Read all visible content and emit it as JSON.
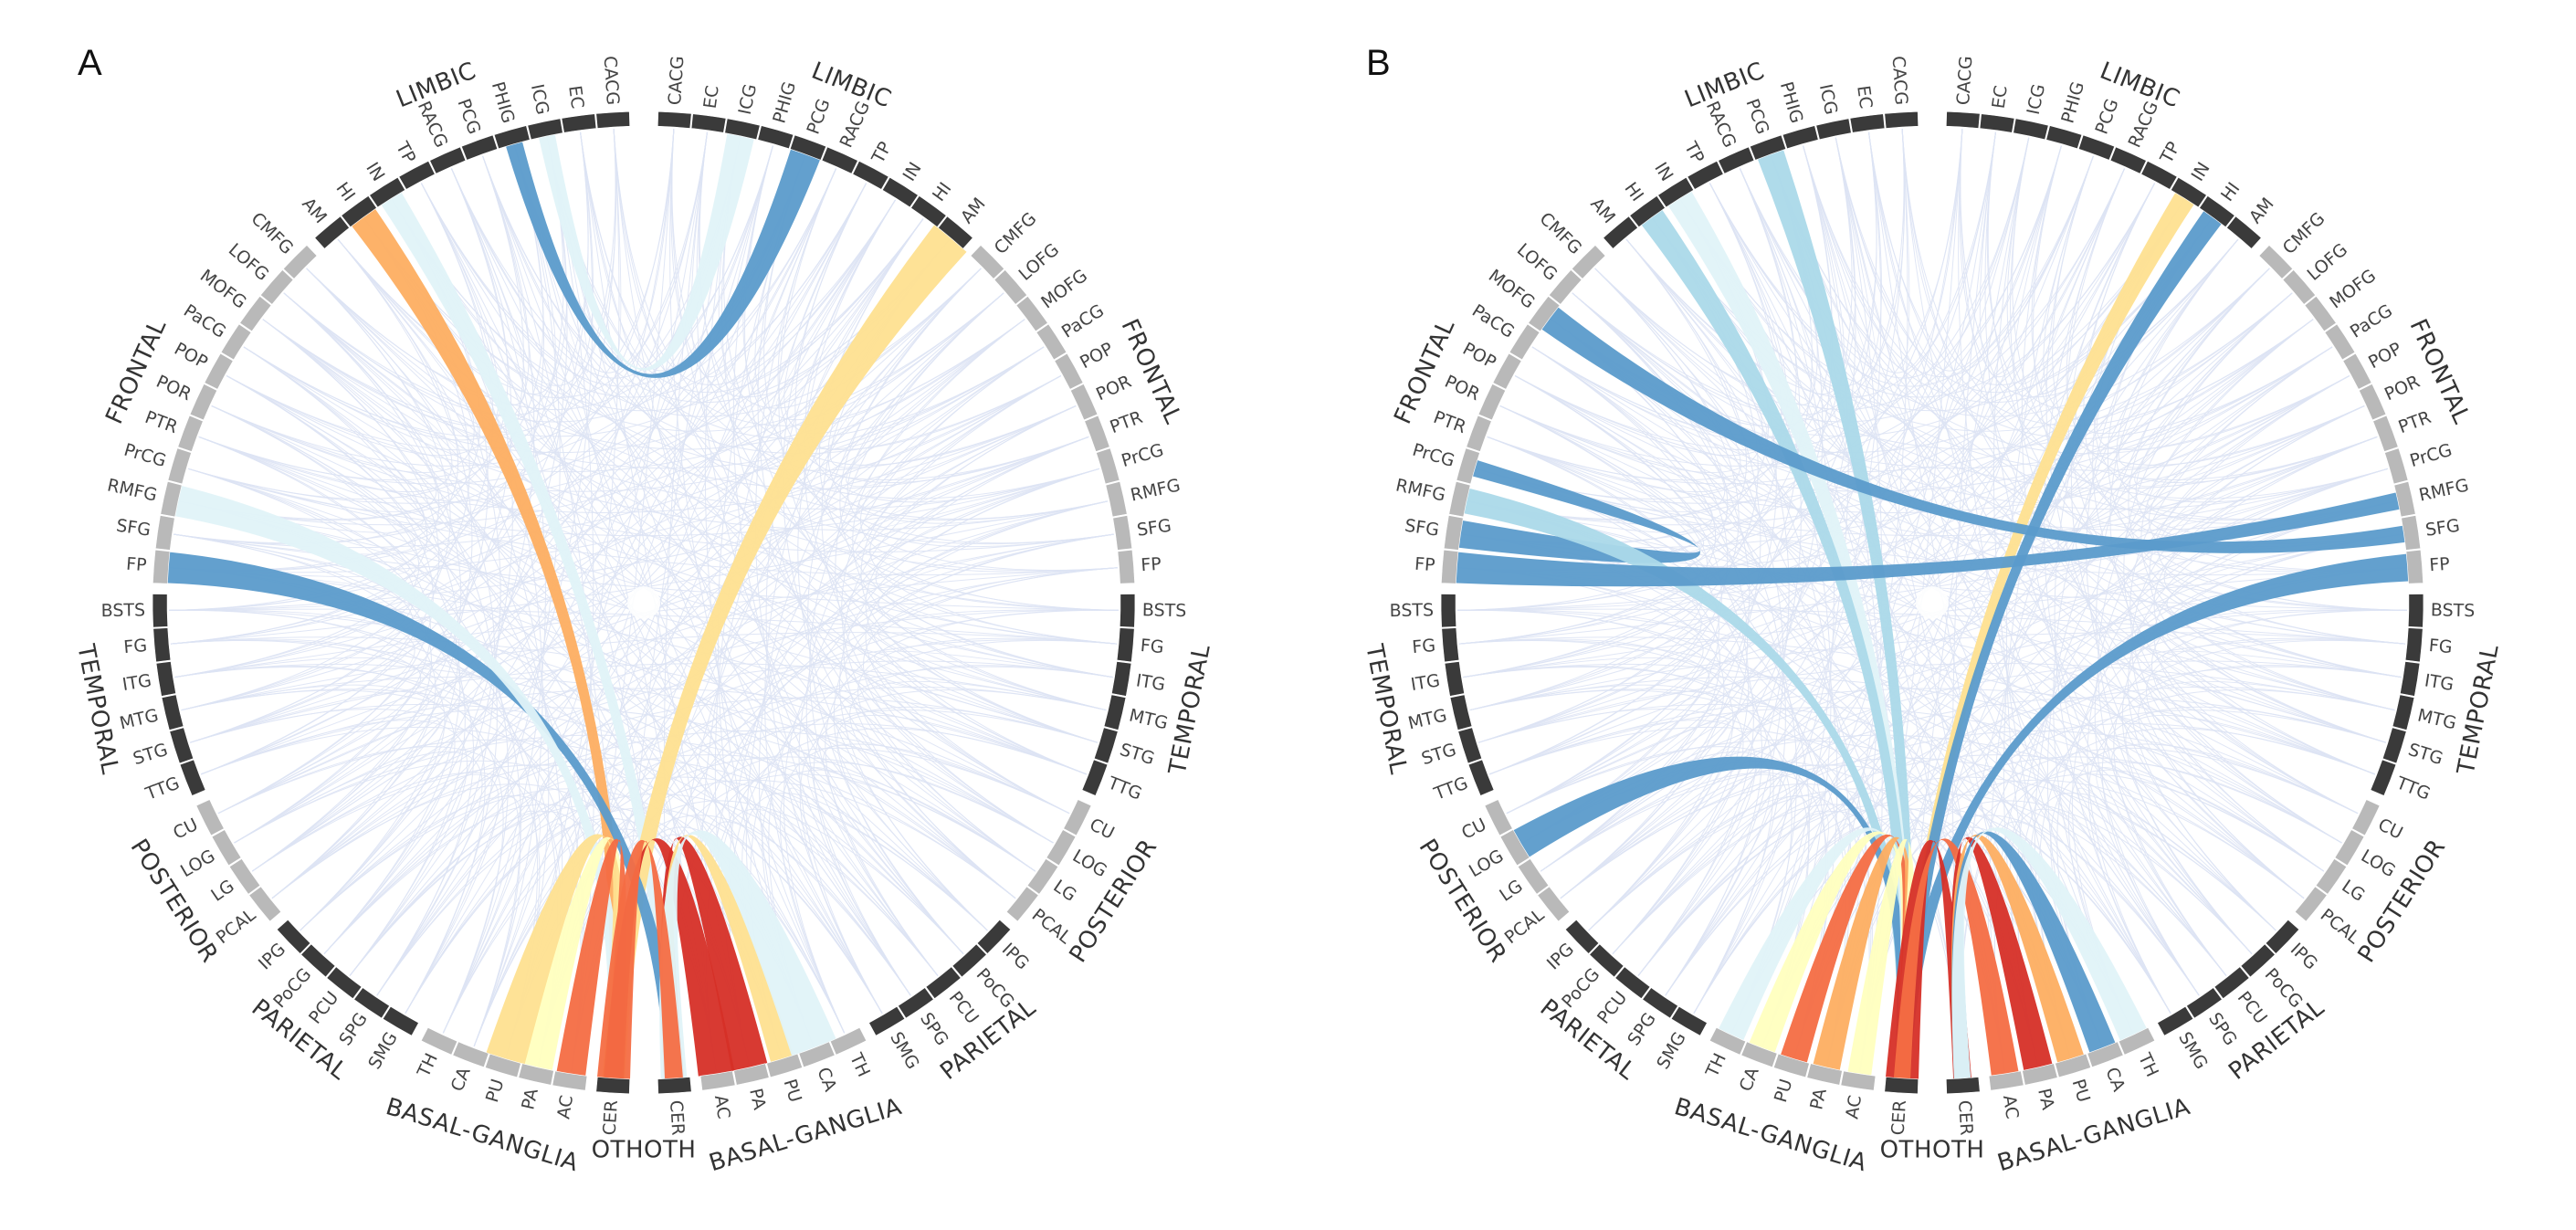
{
  "colors": {
    "dark_segment": "#3a3a3a",
    "light_segment": "#b9b9b9",
    "background_lines": "#dde3f4",
    "chord_palette": {
      "dark_red": "#d62f27",
      "red_orange": "#f46d43",
      "orange": "#fdae61",
      "yellow": "#fee090",
      "pale_yellow": "#ffffbf",
      "pale_blue": "#e0f3f8",
      "light_blue": "#abd9e9",
      "blue": "#74add1",
      "steel_blue": "#5b9bcb"
    }
  },
  "figure": {
    "panels": [
      {
        "letter": "A",
        "nodes": [
          {
            "label": "CACG",
            "lobe": "LIMBIC"
          },
          {
            "label": "EC",
            "lobe": "LIMBIC"
          },
          {
            "label": "ICG",
            "lobe": "LIMBIC"
          },
          {
            "label": "PHIG",
            "lobe": "LIMBIC"
          },
          {
            "label": "PCG",
            "lobe": "LIMBIC"
          },
          {
            "label": "RACG",
            "lobe": "LIMBIC"
          },
          {
            "label": "TP",
            "lobe": "LIMBIC"
          },
          {
            "label": "IN",
            "lobe": "LIMBIC"
          },
          {
            "label": "HI",
            "lobe": "LIMBIC"
          },
          {
            "label": "AM",
            "lobe": "LIMBIC"
          },
          {
            "label": "CMFG",
            "lobe": "FRONTAL"
          },
          {
            "label": "LOFG",
            "lobe": "FRONTAL"
          },
          {
            "label": "MOFG",
            "lobe": "FRONTAL"
          },
          {
            "label": "PaCG",
            "lobe": "FRONTAL"
          },
          {
            "label": "POP",
            "lobe": "FRONTAL"
          },
          {
            "label": "POR",
            "lobe": "FRONTAL"
          },
          {
            "label": "PTR",
            "lobe": "FRONTAL"
          },
          {
            "label": "PrCG",
            "lobe": "FRONTAL"
          },
          {
            "label": "RMFG",
            "lobe": "FRONTAL"
          },
          {
            "label": "SFG",
            "lobe": "FRONTAL"
          },
          {
            "label": "FP",
            "lobe": "FRONTAL"
          },
          {
            "label": "BSTS",
            "lobe": "TEMPORAL"
          },
          {
            "label": "FG",
            "lobe": "TEMPORAL"
          },
          {
            "label": "ITG",
            "lobe": "TEMPORAL"
          },
          {
            "label": "MTG",
            "lobe": "TEMPORAL"
          },
          {
            "label": "STG",
            "lobe": "TEMPORAL"
          },
          {
            "label": "TTG",
            "lobe": "TEMPORAL"
          },
          {
            "label": "CU",
            "lobe": "POSTERIOR"
          },
          {
            "label": "LOG",
            "lobe": "POSTERIOR"
          },
          {
            "label": "LG",
            "lobe": "POSTERIOR"
          },
          {
            "label": "PCAL",
            "lobe": "POSTERIOR"
          },
          {
            "label": "IPG",
            "lobe": "PARIETAL"
          },
          {
            "label": "PoCG",
            "lobe": "PARIETAL"
          },
          {
            "label": "PCU",
            "lobe": "PARIETAL"
          },
          {
            "label": "SPG",
            "lobe": "PARIETAL"
          },
          {
            "label": "SMG",
            "lobe": "PARIETAL"
          },
          {
            "label": "TH",
            "lobe": "BASAL-GANGLIA"
          },
          {
            "label": "CA",
            "lobe": "BASAL-GANGLIA"
          },
          {
            "label": "PU",
            "lobe": "BASAL-GANGLIA"
          },
          {
            "label": "PA",
            "lobe": "BASAL-GANGLIA"
          },
          {
            "label": "AC",
            "lobe": "BASAL-GANGLIA"
          },
          {
            "label": "CER",
            "lobe": "OTH"
          }
        ],
        "chords": [
          {
            "a": "R:PCG",
            "b": "L:PHIG",
            "color": "steel_blue",
            "width": 34
          },
          {
            "a": "R:ICG",
            "b": "L:ICG",
            "color": "pale_blue",
            "width": 30
          },
          {
            "a": "L:HI",
            "b": "L:CER",
            "color": "orange",
            "width": 32
          },
          {
            "a": "L:IN",
            "b": "R:CER",
            "color": "pale_blue",
            "width": 26
          },
          {
            "a": "R:AM",
            "b": "L:CER",
            "color": "yellow",
            "width": 46
          },
          {
            "a": "L:FP",
            "b": "R:CER",
            "color": "steel_blue",
            "width": 34
          },
          {
            "a": "L:RMFG",
            "b": "L:CER",
            "color": "pale_blue",
            "width": 34
          },
          {
            "a": "L:PA",
            "b": "L:CER",
            "color": "pale_yellow",
            "width": 32
          },
          {
            "a": "L:PU",
            "b": "L:CER",
            "color": "yellow",
            "width": 44
          },
          {
            "a": "L:AC",
            "b": "L:CER",
            "color": "red_orange",
            "width": 32
          },
          {
            "a": "R:AC",
            "b": "L:CER",
            "color": "dark_red",
            "width": 40
          },
          {
            "a": "R:PA",
            "b": "R:CER",
            "color": "dark_red",
            "width": 40
          },
          {
            "a": "R:PU",
            "b": "R:CER",
            "color": "yellow",
            "width": 26
          },
          {
            "a": "R:CA",
            "b": "R:CER",
            "color": "pale_blue",
            "width": 52
          },
          {
            "a": "L:CER",
            "b": "R:CER",
            "color": "red_orange",
            "width": 36
          }
        ]
      },
      {
        "letter": "B",
        "nodes": [
          {
            "label": "CACG",
            "lobe": "LIMBIC"
          },
          {
            "label": "EC",
            "lobe": "LIMBIC"
          },
          {
            "label": "ICG",
            "lobe": "LIMBIC"
          },
          {
            "label": "PHIG",
            "lobe": "LIMBIC"
          },
          {
            "label": "PCG",
            "lobe": "LIMBIC"
          },
          {
            "label": "RACG",
            "lobe": "LIMBIC"
          },
          {
            "label": "TP",
            "lobe": "LIMBIC"
          },
          {
            "label": "IN",
            "lobe": "LIMBIC"
          },
          {
            "label": "HI",
            "lobe": "LIMBIC"
          },
          {
            "label": "AM",
            "lobe": "LIMBIC"
          },
          {
            "label": "CMFG",
            "lobe": "FRONTAL"
          },
          {
            "label": "LOFG",
            "lobe": "FRONTAL"
          },
          {
            "label": "MOFG",
            "lobe": "FRONTAL"
          },
          {
            "label": "PaCG",
            "lobe": "FRONTAL"
          },
          {
            "label": "POP",
            "lobe": "FRONTAL"
          },
          {
            "label": "POR",
            "lobe": "FRONTAL"
          },
          {
            "label": "PTR",
            "lobe": "FRONTAL"
          },
          {
            "label": "PrCG",
            "lobe": "FRONTAL"
          },
          {
            "label": "RMFG",
            "lobe": "FRONTAL"
          },
          {
            "label": "SFG",
            "lobe": "FRONTAL"
          },
          {
            "label": "FP",
            "lobe": "FRONTAL"
          },
          {
            "label": "BSTS",
            "lobe": "TEMPORAL"
          },
          {
            "label": "FG",
            "lobe": "TEMPORAL"
          },
          {
            "label": "ITG",
            "lobe": "TEMPORAL"
          },
          {
            "label": "MTG",
            "lobe": "TEMPORAL"
          },
          {
            "label": "STG",
            "lobe": "TEMPORAL"
          },
          {
            "label": "TTG",
            "lobe": "TEMPORAL"
          },
          {
            "label": "CU",
            "lobe": "POSTERIOR"
          },
          {
            "label": "LOG",
            "lobe": "POSTERIOR"
          },
          {
            "label": "LG",
            "lobe": "POSTERIOR"
          },
          {
            "label": "PCAL",
            "lobe": "POSTERIOR"
          },
          {
            "label": "IPG",
            "lobe": "PARIETAL"
          },
          {
            "label": "PoCG",
            "lobe": "PARIETAL"
          },
          {
            "label": "PCU",
            "lobe": "PARIETAL"
          },
          {
            "label": "SPG",
            "lobe": "PARIETAL"
          },
          {
            "label": "SMG",
            "lobe": "PARIETAL"
          },
          {
            "label": "TH",
            "lobe": "BASAL-GANGLIA"
          },
          {
            "label": "CA",
            "lobe": "BASAL-GANGLIA"
          },
          {
            "label": "PU",
            "lobe": "BASAL-GANGLIA"
          },
          {
            "label": "PA",
            "lobe": "BASAL-GANGLIA"
          },
          {
            "label": "AC",
            "lobe": "BASAL-GANGLIA"
          },
          {
            "label": "CER",
            "lobe": "OTH"
          }
        ],
        "chords": [
          {
            "a": "L:PCG",
            "b": "L:CER",
            "color": "light_blue",
            "width": 30
          },
          {
            "a": "L:IN",
            "b": "L:CER",
            "color": "pale_blue",
            "width": 30
          },
          {
            "a": "L:HI",
            "b": "L:CER",
            "color": "light_blue",
            "width": 28
          },
          {
            "a": "R:IN",
            "b": "L:CER",
            "color": "yellow",
            "width": 24
          },
          {
            "a": "R:HI",
            "b": "L:CER",
            "color": "steel_blue",
            "width": 24
          },
          {
            "a": "L:MOFG",
            "b": "R:SFG",
            "color": "steel_blue",
            "width": 30
          },
          {
            "a": "L:SFG",
            "b": "L:PrCG",
            "color": "steel_blue",
            "width": 30
          },
          {
            "a": "L:RMFG",
            "b": "L:CER",
            "color": "light_blue",
            "width": 28
          },
          {
            "a": "L:FP",
            "b": "R:RMFG",
            "color": "steel_blue",
            "width": 34
          },
          {
            "a": "R:FP",
            "b": "L:CER",
            "color": "steel_blue",
            "width": 30
          },
          {
            "a": "L:LOG",
            "b": "L:CER",
            "color": "steel_blue",
            "width": 34
          },
          {
            "a": "L:TH",
            "b": "L:CER",
            "color": "pale_blue",
            "width": 30
          },
          {
            "a": "L:CA",
            "b": "L:CER",
            "color": "pale_yellow",
            "width": 30
          },
          {
            "a": "L:PU",
            "b": "L:CER",
            "color": "red_orange",
            "width": 30
          },
          {
            "a": "L:PA",
            "b": "L:CER",
            "color": "orange",
            "width": 30
          },
          {
            "a": "L:AC",
            "b": "L:CER",
            "color": "pale_yellow",
            "width": 26
          },
          {
            "a": "L:CER",
            "b": "R:CER",
            "color": "dark_red",
            "width": 36
          },
          {
            "a": "R:AC",
            "b": "L:CER",
            "color": "red_orange",
            "width": 30
          },
          {
            "a": "R:PA",
            "b": "R:CER",
            "color": "dark_red",
            "width": 32
          },
          {
            "a": "R:PU",
            "b": "R:CER",
            "color": "orange",
            "width": 30
          },
          {
            "a": "R:CA",
            "b": "R:CER",
            "color": "steel_blue",
            "width": 30
          },
          {
            "a": "R:TH",
            "b": "R:CER",
            "color": "pale_blue",
            "width": 32
          }
        ]
      }
    ],
    "lobe_labels": {
      "LIMBIC": "LIMBIC",
      "FRONTAL": "FRONTAL",
      "TEMPORAL": "TEMPORAL",
      "POSTERIOR": "POSTERIOR",
      "PARIETAL": "PARIETAL",
      "BASAL-GANGLIA": "BASAL-GANGLIA",
      "OTHOTH": "OTHOTH"
    }
  }
}
